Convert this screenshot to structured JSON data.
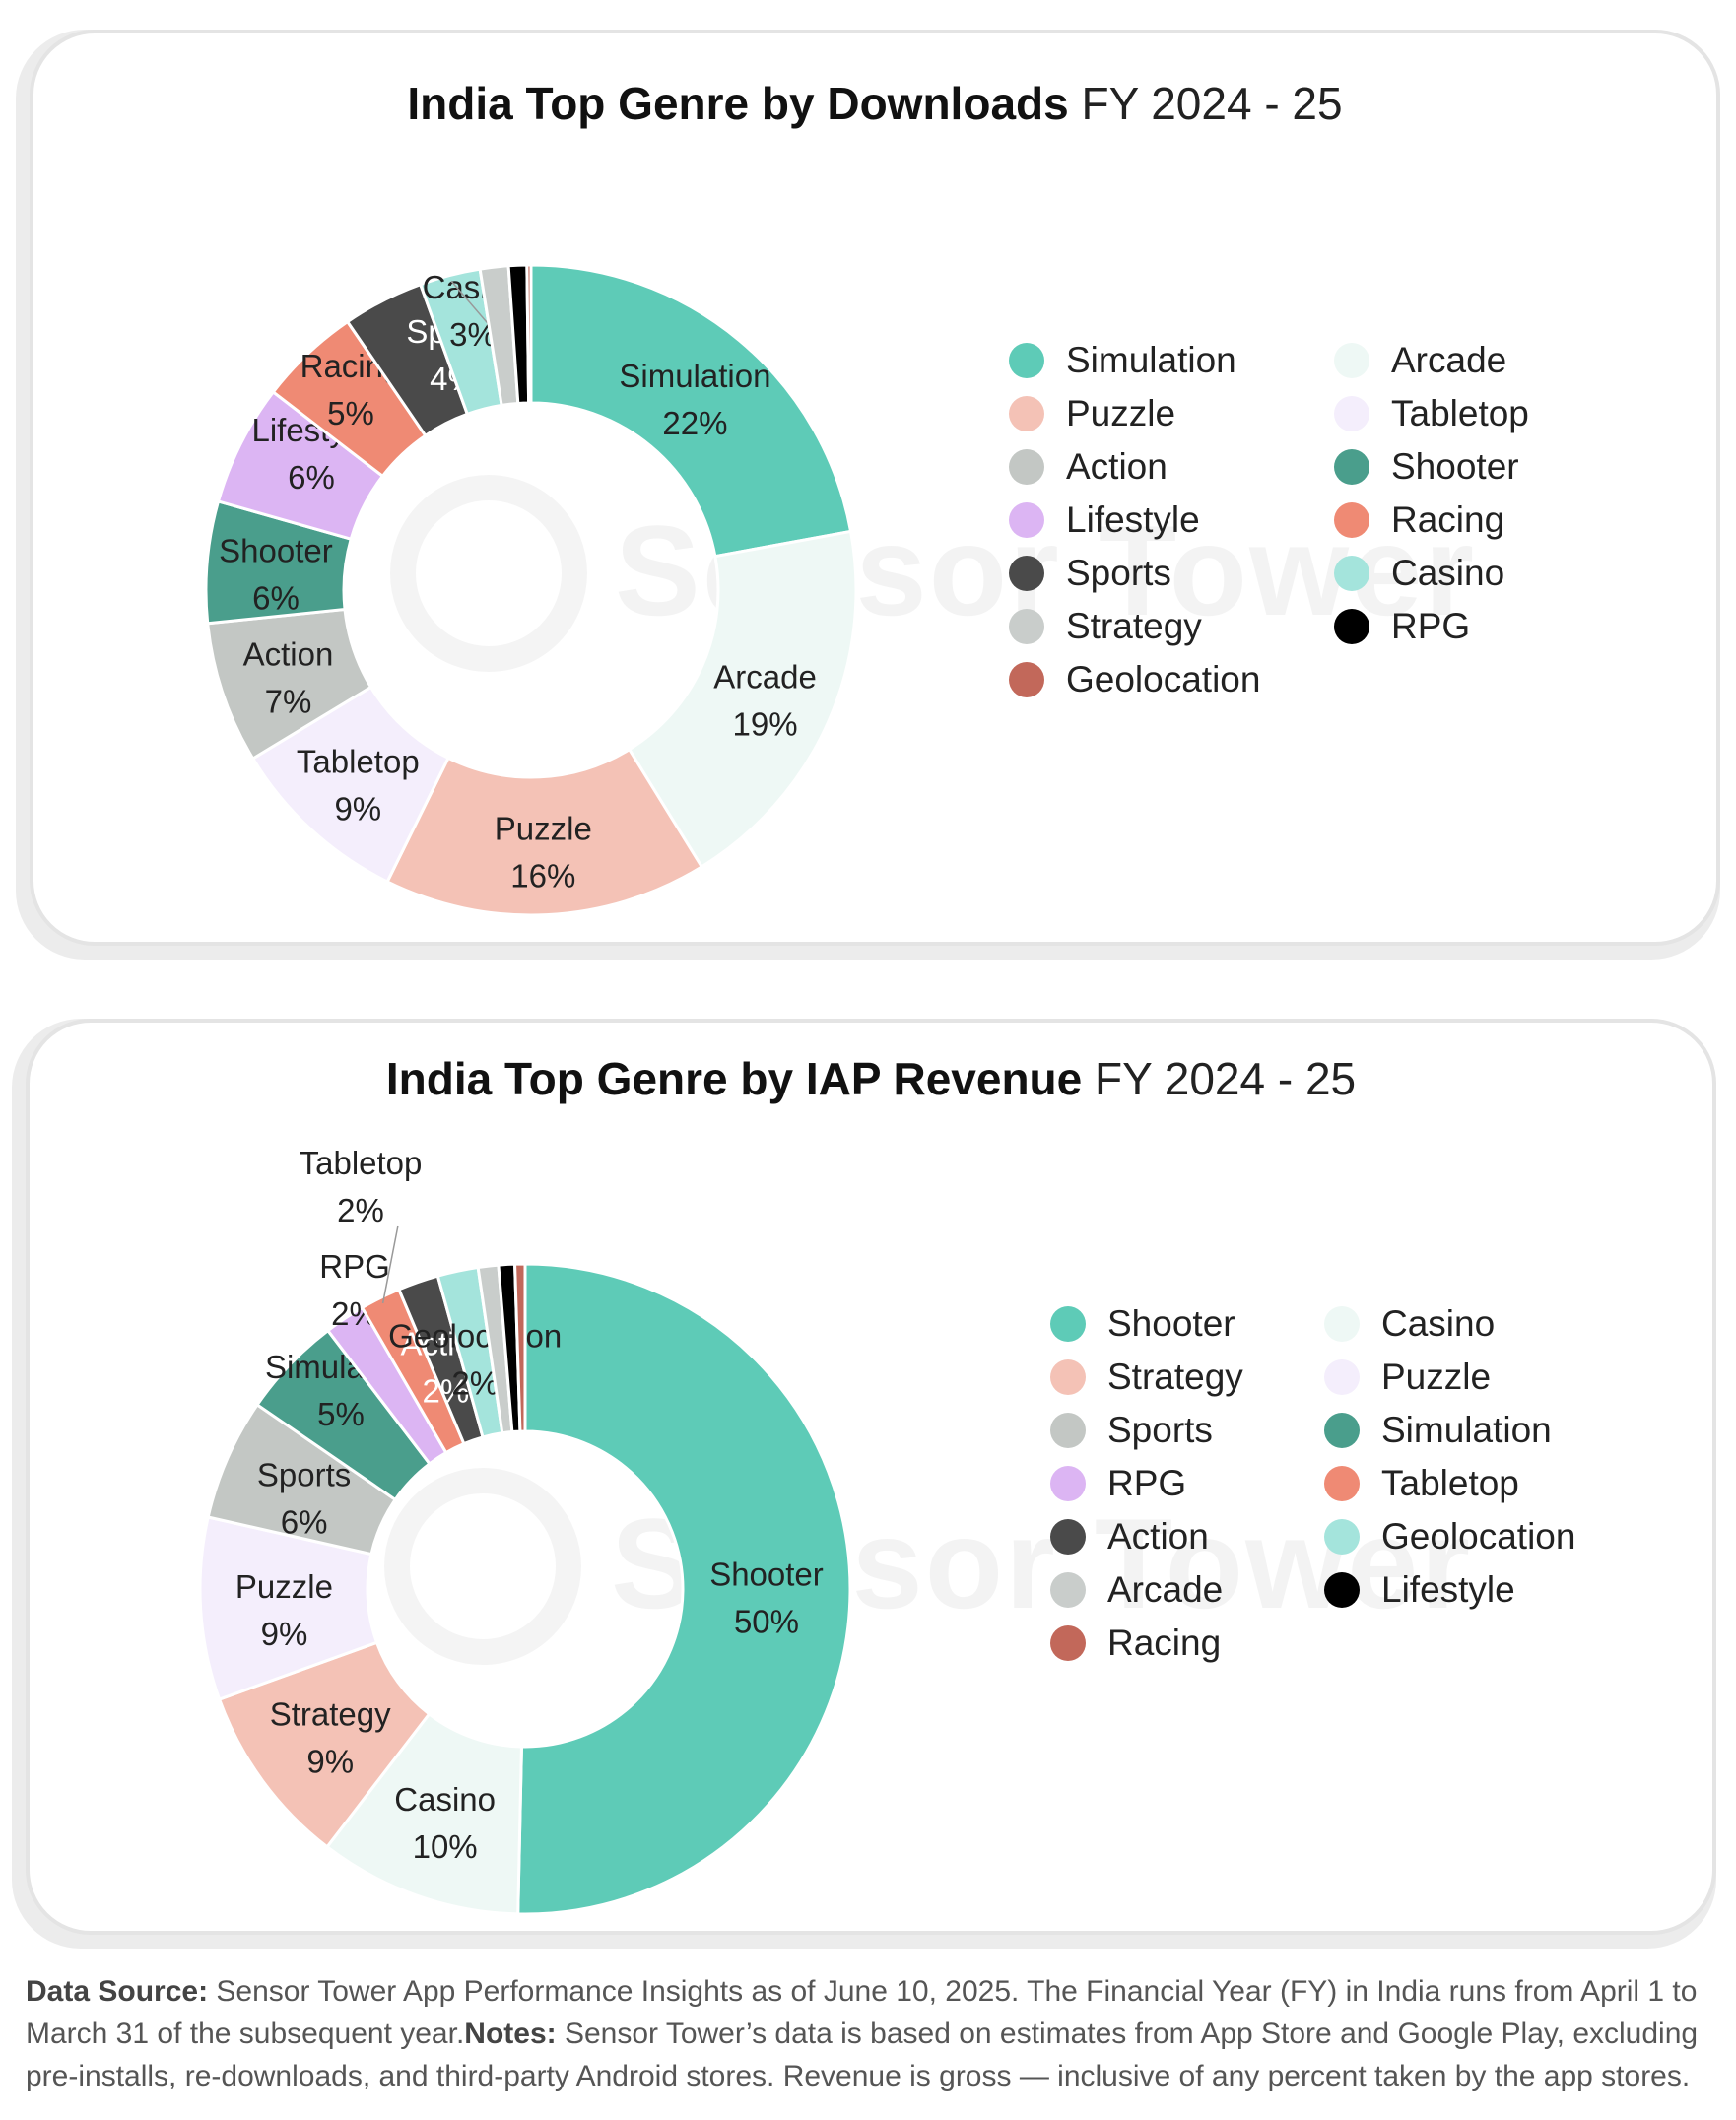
{
  "chart_data": [
    {
      "type": "pie",
      "variant": "donut",
      "title_bold": "India Top Genre by Downloads",
      "title_light": "FY 2024 - 25",
      "unit": "%",
      "slices": [
        {
          "label": "Simulation",
          "value": 22,
          "color": "#5ecbb7"
        },
        {
          "label": "Arcade",
          "value": 19,
          "color": "#eef8f5"
        },
        {
          "label": "Puzzle",
          "value": 16,
          "color": "#f4c2b6"
        },
        {
          "label": "Tabletop",
          "value": 9,
          "color": "#f4eefc"
        },
        {
          "label": "Action",
          "value": 7,
          "color": "#c3c7c4"
        },
        {
          "label": "Shooter",
          "value": 6,
          "color": "#4a9e8c"
        },
        {
          "label": "Lifestyle",
          "value": 6,
          "color": "#dcb5f3"
        },
        {
          "label": "Racing",
          "value": 5,
          "color": "#ef8a74"
        },
        {
          "label": "Sports",
          "value": 4,
          "color": "#4a4a4a"
        },
        {
          "label": "Casino",
          "value": 3,
          "color": "#a4e4dc"
        },
        {
          "label": "Strategy",
          "value": 1.4,
          "color": "#c9cdcb"
        },
        {
          "label": "RPG",
          "value": 0.9,
          "color": "#000000"
        },
        {
          "label": "Geolocation",
          "value": 0.2,
          "color": "#c2685a"
        }
      ],
      "legend": [
        {
          "label": "Simulation",
          "color": "#5ecbb7"
        },
        {
          "label": "Puzzle",
          "color": "#f4c2b6"
        },
        {
          "label": "Action",
          "color": "#c3c7c4"
        },
        {
          "label": "Lifestyle",
          "color": "#dcb5f3"
        },
        {
          "label": "Sports",
          "color": "#4a4a4a"
        },
        {
          "label": "Strategy",
          "color": "#c9cdcb"
        },
        {
          "label": "Geolocation",
          "color": "#c2685a"
        },
        {
          "label": "Arcade",
          "color": "#eef8f5"
        },
        {
          "label": "Tabletop",
          "color": "#f4eefc"
        },
        {
          "label": "Shooter",
          "color": "#4a9e8c"
        },
        {
          "label": "Racing",
          "color": "#ef8a74"
        },
        {
          "label": "Casino",
          "color": "#a4e4dc"
        },
        {
          "label": "RPG",
          "color": "#000000"
        }
      ]
    },
    {
      "type": "pie",
      "variant": "donut",
      "title_bold": "India Top Genre by IAP Revenue",
      "title_light": "FY 2024 - 25",
      "unit": "%",
      "slices": [
        {
          "label": "Shooter",
          "value": 50,
          "color": "#5ecbb7"
        },
        {
          "label": "Casino",
          "value": 10,
          "color": "#eef8f5"
        },
        {
          "label": "Strategy",
          "value": 9,
          "color": "#f4c2b6"
        },
        {
          "label": "Puzzle",
          "value": 9,
          "color": "#f4eefc"
        },
        {
          "label": "Sports",
          "value": 6,
          "color": "#c3c7c4"
        },
        {
          "label": "Simulation",
          "value": 5,
          "color": "#4a9e8c"
        },
        {
          "label": "RPG",
          "value": 2,
          "color": "#dcb5f3"
        },
        {
          "label": "Tabletop",
          "value": 2,
          "color": "#ef8a74"
        },
        {
          "label": "Action",
          "value": 2,
          "color": "#4a4a4a"
        },
        {
          "label": "Geolocation",
          "value": 2,
          "color": "#a4e4dc"
        },
        {
          "label": "Arcade",
          "value": 1,
          "color": "#c9cdcb"
        },
        {
          "label": "Lifestyle",
          "value": 0.8,
          "color": "#000000"
        },
        {
          "label": "Racing",
          "value": 0.5,
          "color": "#c2685a"
        }
      ],
      "legend": [
        {
          "label": "Shooter",
          "color": "#5ecbb7"
        },
        {
          "label": "Strategy",
          "color": "#f4c2b6"
        },
        {
          "label": "Sports",
          "color": "#c3c7c4"
        },
        {
          "label": "RPG",
          "color": "#dcb5f3"
        },
        {
          "label": "Action",
          "color": "#4a4a4a"
        },
        {
          "label": "Arcade",
          "color": "#c9cdcb"
        },
        {
          "label": "Racing",
          "color": "#c2685a"
        },
        {
          "label": "Casino",
          "color": "#eef8f5"
        },
        {
          "label": "Puzzle",
          "color": "#f4eefc"
        },
        {
          "label": "Simulation",
          "color": "#4a9e8c"
        },
        {
          "label": "Tabletop",
          "color": "#ef8a74"
        },
        {
          "label": "Geolocation",
          "color": "#a4e4dc"
        },
        {
          "label": "Lifestyle",
          "color": "#000000"
        }
      ]
    }
  ],
  "watermark": "Sensor Tower",
  "footer": {
    "source_label": "Data Source:",
    "source_text": " Sensor Tower App Performance Insights as of June 10, 2025. The Financial Year (FY) in India runs from April 1 to March 31 of the subsequent year.",
    "notes_label": "Notes:",
    "notes_text": " Sensor Tower’s data is based on estimates from App Store and Google Play, excluding pre-installs, re-downloads, and third-party Android stores. Revenue is gross — inclusive of any percent taken by the app stores."
  }
}
